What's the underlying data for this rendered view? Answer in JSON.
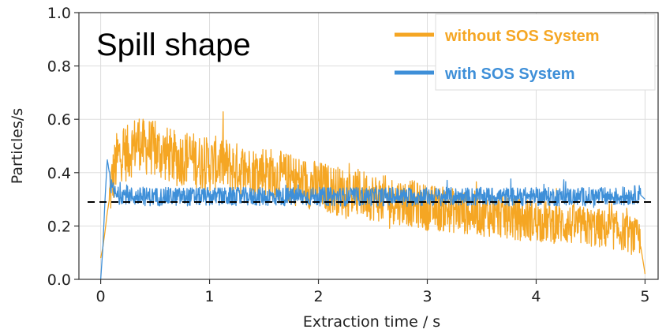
{
  "chart_data": {
    "type": "line",
    "title": "Spill shape",
    "xlabel": "Extraction time / s",
    "ylabel": "Particles/s",
    "xlim": [
      -0.2,
      5.12
    ],
    "ylim": [
      0.0,
      1.0
    ],
    "xticks": [
      0,
      1,
      2,
      3,
      4,
      5
    ],
    "yticks": [
      0.0,
      0.2,
      0.4,
      0.6,
      0.8,
      1.0
    ],
    "xtick_labels": [
      "0",
      "1",
      "2",
      "3",
      "4",
      "5"
    ],
    "ytick_labels": [
      "0.0",
      "0.2",
      "0.4",
      "0.6",
      "0.8",
      "1.0"
    ],
    "grid": true,
    "legend_position": "top-right",
    "reference_line": {
      "y": 0.29,
      "style": "dashed",
      "color": "#000000"
    },
    "series": [
      {
        "name": "without SOS System",
        "color": "#F5A623",
        "x": [
          0.0,
          0.02,
          0.04,
          0.06,
          0.08,
          0.1,
          0.15,
          0.2,
          0.25,
          0.3,
          0.35,
          0.4,
          0.45,
          0.5,
          0.6,
          0.7,
          0.8,
          0.9,
          1.0,
          1.1,
          1.2,
          1.3,
          1.4,
          1.5,
          1.6,
          1.7,
          1.8,
          1.9,
          2.0,
          2.2,
          2.4,
          2.6,
          2.8,
          3.0,
          3.2,
          3.4,
          3.6,
          3.8,
          4.0,
          4.2,
          4.4,
          4.6,
          4.8,
          4.95,
          5.0
        ],
        "values": [
          0.08,
          0.12,
          0.18,
          0.25,
          0.3,
          0.36,
          0.45,
          0.48,
          0.47,
          0.5,
          0.52,
          0.49,
          0.5,
          0.48,
          0.47,
          0.45,
          0.46,
          0.44,
          0.43,
          0.44,
          0.42,
          0.41,
          0.4,
          0.41,
          0.39,
          0.38,
          0.37,
          0.36,
          0.35,
          0.33,
          0.32,
          0.3,
          0.29,
          0.27,
          0.26,
          0.25,
          0.24,
          0.23,
          0.22,
          0.21,
          0.2,
          0.19,
          0.18,
          0.15,
          0.02
        ]
      },
      {
        "name": "with SOS System",
        "color": "#3E8FD8",
        "x": [
          0.0,
          0.02,
          0.04,
          0.06,
          0.08,
          0.1,
          0.15,
          0.2,
          0.3,
          0.4,
          0.5,
          0.6,
          0.8,
          1.0,
          1.2,
          1.4,
          1.6,
          1.8,
          2.0,
          2.2,
          2.4,
          2.6,
          2.8,
          3.0,
          3.2,
          3.4,
          3.6,
          3.8,
          4.0,
          4.2,
          4.4,
          4.6,
          4.8,
          4.95,
          5.0
        ],
        "values": [
          0.0,
          0.12,
          0.3,
          0.45,
          0.4,
          0.34,
          0.31,
          0.32,
          0.31,
          0.31,
          0.31,
          0.31,
          0.31,
          0.31,
          0.31,
          0.31,
          0.31,
          0.31,
          0.31,
          0.31,
          0.31,
          0.31,
          0.31,
          0.31,
          0.31,
          0.31,
          0.31,
          0.31,
          0.31,
          0.31,
          0.31,
          0.31,
          0.31,
          0.32,
          0.3
        ]
      }
    ]
  }
}
